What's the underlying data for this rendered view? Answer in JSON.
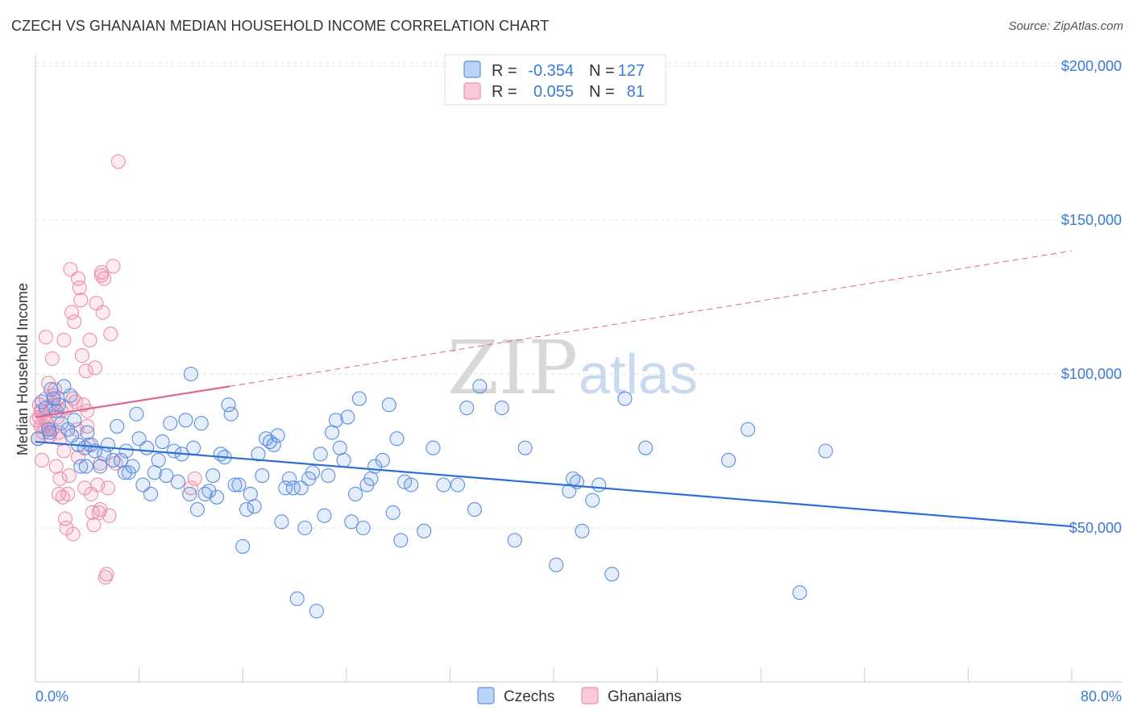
{
  "title": "CZECH VS GHANAIAN MEDIAN HOUSEHOLD INCOME CORRELATION CHART",
  "source": "Source: ZipAtlas.com",
  "watermark": {
    "part1": "ZIP",
    "part2": "atlas"
  },
  "colors": {
    "czech": "#5b8fe0",
    "czech_line": "#2a6fd1",
    "ghana": "#ee8fae",
    "ghana_line": "#e0648e",
    "label": "#3a7ad6"
  },
  "legend": {
    "rows": [
      {
        "r_label": "R =",
        "r_value": "-0.354",
        "n_label": "N =",
        "n_value": "127"
      },
      {
        "r_label": "R =",
        "r_value": "0.055",
        "n_label": "N =",
        "n_value": "81"
      }
    ]
  },
  "chart_data": {
    "type": "scatter",
    "title": "CZECH VS GHANAIAN MEDIAN HOUSEHOLD INCOME CORRELATION CHART",
    "ylabel": "Median Household Income",
    "xlabel": "",
    "xlim": [
      0,
      80
    ],
    "ylim": [
      0,
      210000
    ],
    "x_tick_labels": [
      "0.0%",
      "80.0%"
    ],
    "y_ticks": [
      50000,
      100000,
      150000,
      200000
    ],
    "y_tick_labels": [
      "$50,000",
      "$100,000",
      "$150,000",
      "$200,000"
    ],
    "grid": true,
    "legend_position": "top-center",
    "series": [
      {
        "name": "Czechs",
        "color": "#5b8fe0",
        "trend": {
          "x": [
            0,
            80
          ],
          "y": [
            78000,
            50500
          ],
          "style": "solid"
        },
        "points": [
          [
            0.2,
            79000
          ],
          [
            0.5,
            91000
          ],
          [
            0.8,
            89000
          ],
          [
            1.0,
            82000
          ],
          [
            1.2,
            95000
          ],
          [
            1.4,
            92000
          ],
          [
            1.6,
            88000
          ],
          [
            1.8,
            90000
          ],
          [
            2.0,
            84000
          ],
          [
            2.2,
            96000
          ],
          [
            2.5,
            82000
          ],
          [
            2.8,
            80000
          ],
          [
            3.0,
            85000
          ],
          [
            3.3,
            77000
          ],
          [
            3.5,
            70000
          ],
          [
            3.8,
            76000
          ],
          [
            4.0,
            81000
          ],
          [
            4.3,
            77000
          ],
          [
            4.6,
            75000
          ],
          [
            5.0,
            70000
          ],
          [
            5.3,
            74000
          ],
          [
            5.6,
            77000
          ],
          [
            6.0,
            72000
          ],
          [
            6.3,
            83000
          ],
          [
            6.6,
            72000
          ],
          [
            6.9,
            68000
          ],
          [
            7.2,
            68000
          ],
          [
            7.5,
            70000
          ],
          [
            7.8,
            87000
          ],
          [
            8.0,
            79000
          ],
          [
            8.3,
            64000
          ],
          [
            8.6,
            76000
          ],
          [
            8.9,
            61000
          ],
          [
            9.2,
            68000
          ],
          [
            9.5,
            72000
          ],
          [
            9.8,
            78000
          ],
          [
            10.1,
            67000
          ],
          [
            10.4,
            84000
          ],
          [
            10.7,
            75000
          ],
          [
            11.0,
            65000
          ],
          [
            11.3,
            74000
          ],
          [
            11.6,
            85000
          ],
          [
            11.9,
            61000
          ],
          [
            12.2,
            76000
          ],
          [
            12.5,
            56000
          ],
          [
            12.8,
            84000
          ],
          [
            13.1,
            61000
          ],
          [
            13.4,
            62000
          ],
          [
            13.7,
            67000
          ],
          [
            14.0,
            60000
          ],
          [
            14.3,
            74000
          ],
          [
            14.6,
            73000
          ],
          [
            14.9,
            90000
          ],
          [
            15.1,
            87000
          ],
          [
            15.4,
            64000
          ],
          [
            15.7,
            64000
          ],
          [
            16.0,
            44000
          ],
          [
            16.3,
            56000
          ],
          [
            16.6,
            61000
          ],
          [
            16.9,
            57000
          ],
          [
            17.2,
            74000
          ],
          [
            17.5,
            67000
          ],
          [
            17.8,
            79000
          ],
          [
            18.1,
            78000
          ],
          [
            18.4,
            77000
          ],
          [
            18.7,
            80000
          ],
          [
            19.0,
            52000
          ],
          [
            19.3,
            63000
          ],
          [
            19.6,
            66000
          ],
          [
            19.9,
            63000
          ],
          [
            20.2,
            27000
          ],
          [
            20.5,
            63000
          ],
          [
            20.8,
            50000
          ],
          [
            21.1,
            66000
          ],
          [
            21.4,
            68000
          ],
          [
            21.7,
            23000
          ],
          [
            22.0,
            74000
          ],
          [
            22.3,
            54000
          ],
          [
            22.6,
            67000
          ],
          [
            22.9,
            81000
          ],
          [
            23.2,
            85000
          ],
          [
            23.5,
            76000
          ],
          [
            23.8,
            72000
          ],
          [
            24.1,
            86000
          ],
          [
            24.4,
            52000
          ],
          [
            24.7,
            61000
          ],
          [
            25.0,
            92000
          ],
          [
            25.3,
            50000
          ],
          [
            25.6,
            64000
          ],
          [
            25.9,
            66000
          ],
          [
            26.2,
            70000
          ],
          [
            26.8,
            72000
          ],
          [
            27.3,
            90000
          ],
          [
            27.6,
            55000
          ],
          [
            27.9,
            79000
          ],
          [
            28.2,
            46000
          ],
          [
            28.5,
            65000
          ],
          [
            29.0,
            64000
          ],
          [
            30.0,
            49000
          ],
          [
            30.7,
            76000
          ],
          [
            31.5,
            64000
          ],
          [
            32.6,
            64000
          ],
          [
            33.3,
            89000
          ],
          [
            33.9,
            56000
          ],
          [
            34.3,
            96000
          ],
          [
            36.0,
            89000
          ],
          [
            37.0,
            46000
          ],
          [
            37.8,
            76000
          ],
          [
            40.2,
            38000
          ],
          [
            41.2,
            62000
          ],
          [
            42.2,
            49000
          ],
          [
            43.0,
            59000
          ],
          [
            43.5,
            64000
          ],
          [
            44.5,
            35000
          ],
          [
            47.1,
            76000
          ],
          [
            53.5,
            72000
          ],
          [
            55.0,
            82000
          ],
          [
            59.0,
            29000
          ],
          [
            61.0,
            75000
          ],
          [
            45.5,
            92000
          ],
          [
            12.0,
            100000
          ],
          [
            2.7,
            93000
          ],
          [
            1.1,
            81000
          ],
          [
            3.9,
            70000
          ],
          [
            7.0,
            75000
          ],
          [
            41.5,
            66000
          ],
          [
            41.8,
            65000
          ]
        ]
      },
      {
        "name": "Ghanaians",
        "color": "#ee8fae",
        "trend": {
          "x": [
            0,
            15
          ],
          "y": [
            86000,
            96000
          ],
          "style": "solid",
          "extended_x": [
            15,
            80
          ],
          "extended_y": [
            96000,
            140000
          ],
          "extended_style": "dashed"
        },
        "points": [
          [
            0.1,
            85000
          ],
          [
            0.2,
            79000
          ],
          [
            0.3,
            90000
          ],
          [
            0.4,
            83000
          ],
          [
            0.5,
            88000
          ],
          [
            0.6,
            81000
          ],
          [
            0.7,
            86000
          ],
          [
            0.8,
            92000
          ],
          [
            0.9,
            84000
          ],
          [
            1.0,
            97000
          ],
          [
            1.1,
            80000
          ],
          [
            1.2,
            88000
          ],
          [
            1.3,
            82000
          ],
          [
            1.4,
            90000
          ],
          [
            1.5,
            95000
          ],
          [
            1.6,
            70000
          ],
          [
            1.7,
            92000
          ],
          [
            1.8,
            81000
          ],
          [
            1.9,
            66000
          ],
          [
            2.0,
            88000
          ],
          [
            2.1,
            60000
          ],
          [
            2.2,
            111000
          ],
          [
            2.3,
            53000
          ],
          [
            2.4,
            50000
          ],
          [
            2.5,
            61000
          ],
          [
            2.6,
            67000
          ],
          [
            2.7,
            134000
          ],
          [
            2.8,
            120000
          ],
          [
            2.9,
            48000
          ],
          [
            3.0,
            117000
          ],
          [
            3.1,
            91000
          ],
          [
            3.2,
            82000
          ],
          [
            3.3,
            131000
          ],
          [
            3.4,
            128000
          ],
          [
            3.5,
            124000
          ],
          [
            3.6,
            106000
          ],
          [
            3.7,
            90000
          ],
          [
            3.8,
            63000
          ],
          [
            3.9,
            101000
          ],
          [
            4.0,
            88000
          ],
          [
            4.1,
            77000
          ],
          [
            4.2,
            111000
          ],
          [
            4.3,
            61000
          ],
          [
            4.4,
            55000
          ],
          [
            4.5,
            51000
          ],
          [
            4.6,
            102000
          ],
          [
            4.7,
            123000
          ],
          [
            4.8,
            64000
          ],
          [
            4.9,
            55000
          ],
          [
            5.0,
            71000
          ],
          [
            5.1,
            133000
          ],
          [
            5.2,
            120000
          ],
          [
            5.3,
            131000
          ],
          [
            5.4,
            34000
          ],
          [
            5.5,
            35000
          ],
          [
            5.6,
            63000
          ],
          [
            5.7,
            54000
          ],
          [
            5.8,
            113000
          ],
          [
            6.0,
            135000
          ],
          [
            6.2,
            71000
          ],
          [
            6.4,
            169000
          ],
          [
            0.8,
            112000
          ],
          [
            1.3,
            105000
          ],
          [
            0.5,
            72000
          ],
          [
            1.7,
            86000
          ],
          [
            2.4,
            89000
          ],
          [
            1.0,
            82000
          ],
          [
            1.9,
            79000
          ],
          [
            2.9,
            92000
          ],
          [
            0.3,
            86000
          ],
          [
            0.7,
            83000
          ],
          [
            1.4,
            93000
          ],
          [
            2.2,
            75000
          ],
          [
            3.3,
            73000
          ],
          [
            4.0,
            83000
          ],
          [
            5.0,
            56000
          ],
          [
            5.1,
            132000
          ],
          [
            12.0,
            63000
          ],
          [
            12.3,
            66000
          ],
          [
            1.8,
            61000
          ],
          [
            0.4,
            88000
          ]
        ]
      }
    ]
  },
  "bottom_legend": [
    "Czechs",
    "Ghanaians"
  ]
}
